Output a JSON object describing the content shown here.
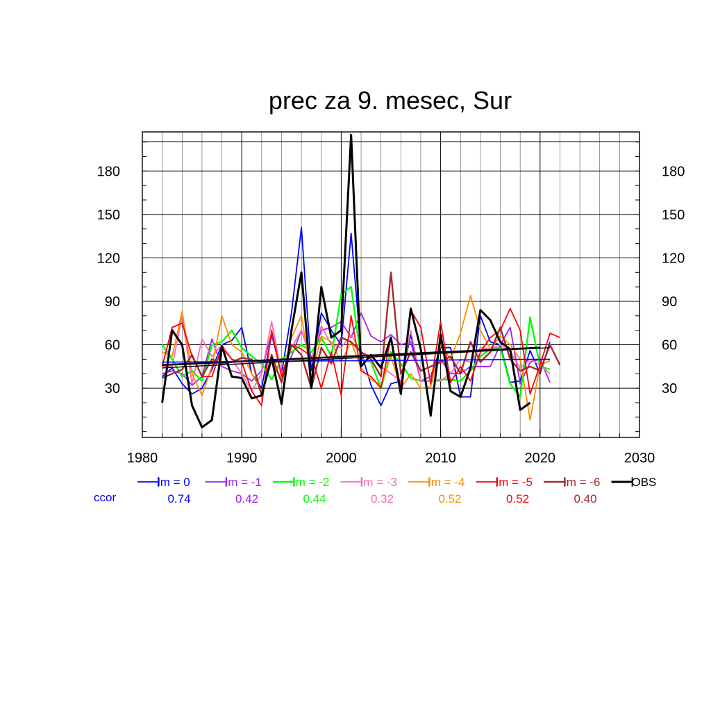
{
  "chart_data": {
    "type": "line",
    "title": "prec za 9. mesec, Sur",
    "xlabel": "",
    "ylabel": "",
    "xlim": [
      1980,
      2030
    ],
    "ylim": [
      -4,
      207
    ],
    "x_ticks": [
      1980,
      1990,
      2000,
      2010,
      2020,
      2030
    ],
    "y_ticks": [
      30,
      60,
      90,
      120,
      150,
      180
    ],
    "grid": true,
    "legend_placement": "below",
    "ccor_label": "ccor",
    "series": [
      {
        "name": "lm = 0",
        "color": "#0000ff",
        "width": 1.8,
        "ccor": "0.74",
        "x": [
          1982,
          1983,
          1984,
          1985,
          1986,
          1987,
          1988,
          1989,
          1990,
          1991,
          1992,
          1993,
          1994,
          1995,
          1996,
          1997,
          1998,
          1999,
          2000,
          2001,
          2002,
          2003,
          2004,
          2005,
          2006,
          2007,
          2008,
          2009,
          2010,
          2011,
          2012,
          2013,
          2014,
          2015,
          2016,
          2017,
          2018,
          2019,
          2020,
          2021
        ],
        "y": [
          38,
          44,
          33,
          26,
          30,
          43,
          60,
          63,
          72,
          40,
          30,
          67,
          40,
          82,
          141,
          42,
          82,
          70,
          60,
          137,
          55,
          32,
          18,
          33,
          35,
          67,
          35,
          38,
          58,
          58,
          24,
          24,
          80,
          62,
          60,
          34,
          35,
          56,
          40,
          62
        ]
      },
      {
        "name": "lm = -1",
        "color": "#a020f0",
        "width": 1.8,
        "ccor": "0.42",
        "x": [
          1982,
          1983,
          1984,
          1985,
          1986,
          1987,
          1988,
          1989,
          1990,
          1991,
          1992,
          1993,
          1994,
          1995,
          1996,
          1997,
          1998,
          1999,
          2000,
          2001,
          2002,
          2003,
          2004,
          2005,
          2006,
          2007,
          2008,
          2009,
          2010,
          2011,
          2012,
          2013,
          2014,
          2015,
          2016,
          2017,
          2018,
          2019,
          2020,
          2021
        ],
        "y": [
          40,
          42,
          40,
          32,
          38,
          64,
          45,
          42,
          40,
          35,
          42,
          68,
          40,
          52,
          70,
          50,
          70,
          72,
          76,
          65,
          82,
          66,
          62,
          67,
          60,
          62,
          35,
          38,
          50,
          40,
          40,
          45,
          45,
          45,
          60,
          72,
          33,
          48,
          50,
          34
        ]
      },
      {
        "name": "lm = -2",
        "color": "#00ff00",
        "width": 2.4,
        "ccor": "0.44",
        "x": [
          1982,
          1983,
          1984,
          1985,
          1986,
          1987,
          1988,
          1989,
          1990,
          1991,
          1992,
          1993,
          1994,
          1995,
          1996,
          1997,
          1998,
          1999,
          2000,
          2001,
          2002,
          2003,
          2004,
          2005,
          2006,
          2007,
          2008,
          2009,
          2010,
          2011,
          2012,
          2013,
          2014,
          2015,
          2016,
          2017,
          2018,
          2019,
          2020,
          2021
        ],
        "y": [
          60,
          50,
          38,
          42,
          35,
          60,
          62,
          70,
          58,
          52,
          47,
          36,
          50,
          55,
          60,
          55,
          65,
          52,
          95,
          100,
          50,
          48,
          30,
          55,
          47,
          37,
          35,
          35,
          36,
          36,
          35,
          42,
          52,
          57,
          58,
          33,
          24,
          79,
          45,
          43
        ]
      },
      {
        "name": "lm = -3",
        "color": "#ff69b4",
        "width": 1.8,
        "ccor": "0.32",
        "x": [
          1982,
          1983,
          1984,
          1985,
          1986,
          1987,
          1988,
          1989,
          1990,
          1991,
          1992,
          1993,
          1994,
          1995,
          1996,
          1997,
          1998,
          1999,
          2000,
          2001,
          2002,
          2003,
          2004,
          2005,
          2006,
          2007,
          2008,
          2009,
          2010,
          2011,
          2012,
          2013,
          2014,
          2015,
          2016,
          2017,
          2018,
          2019,
          2020,
          2021
        ],
        "y": [
          45,
          45,
          80,
          33,
          64,
          52,
          60,
          50,
          40,
          28,
          40,
          76,
          40,
          58,
          70,
          50,
          73,
          60,
          58,
          67,
          55,
          52,
          45,
          40,
          35,
          70,
          35,
          35,
          35,
          40,
          50,
          48,
          58,
          57,
          60,
          55,
          44,
          50,
          46,
          40
        ]
      },
      {
        "name": "lm = -4",
        "color": "#ff8c00",
        "width": 1.8,
        "ccor": "0.52",
        "x": [
          1982,
          1983,
          1984,
          1985,
          1986,
          1987,
          1988,
          1989,
          1990,
          1991,
          1992,
          1993,
          1994,
          1995,
          1996,
          1997,
          1998,
          1999,
          2000,
          2001,
          2002,
          2003,
          2004,
          2005,
          2006,
          2007,
          2008,
          2009,
          2010,
          2011,
          2012,
          2013,
          2014,
          2015,
          2016,
          2017,
          2018,
          2019,
          2020,
          2021
        ],
        "y": [
          55,
          52,
          83,
          40,
          25,
          45,
          80,
          60,
          55,
          40,
          28,
          48,
          36,
          65,
          80,
          38,
          66,
          62,
          48,
          62,
          44,
          36,
          32,
          52,
          30,
          40,
          30,
          31,
          60,
          50,
          68,
          94,
          70,
          57,
          66,
          60,
          50,
          8,
          46,
          49
        ]
      },
      {
        "name": "lm = -5",
        "color": "#ff0000",
        "width": 1.8,
        "ccor": "0.52",
        "x": [
          1982,
          1983,
          1984,
          1985,
          1986,
          1987,
          1988,
          1989,
          1990,
          1991,
          1992,
          1993,
          1994,
          1995,
          1996,
          1997,
          1998,
          1999,
          2000,
          2001,
          2002,
          2003,
          2004,
          2005,
          2006,
          2007,
          2008,
          2009,
          2010,
          2011,
          2012,
          2013,
          2014,
          2015,
          2016,
          2017,
          2018,
          2019,
          2020,
          2021,
          2022
        ],
        "y": [
          45,
          72,
          75,
          52,
          38,
          38,
          58,
          50,
          48,
          28,
          18,
          70,
          38,
          60,
          57,
          52,
          30,
          55,
          25,
          80,
          42,
          38,
          30,
          65,
          30,
          84,
          72,
          33,
          76,
          34,
          45,
          35,
          55,
          65,
          70,
          85,
          70,
          26,
          46,
          68,
          65
        ]
      },
      {
        "name": "lm = -6",
        "color": "#a52a2a",
        "width": 2.4,
        "ccor": "0.40",
        "x": [
          1982,
          1983,
          1984,
          1985,
          1986,
          1987,
          1988,
          1989,
          1990,
          1991,
          1992,
          1993,
          1994,
          1995,
          1996,
          1997,
          1998,
          1999,
          2000,
          2001,
          2002,
          2003,
          2004,
          2005,
          2006,
          2007,
          2008,
          2009,
          2010,
          2011,
          2012,
          2013,
          2014,
          2015,
          2016,
          2017,
          2018,
          2019,
          2020,
          2021,
          2022
        ],
        "y": [
          37,
          40,
          43,
          53,
          38,
          50,
          47,
          48,
          51,
          50,
          25,
          53,
          34,
          60,
          53,
          30,
          58,
          47,
          65,
          62,
          55,
          50,
          38,
          110,
          40,
          55,
          42,
          45,
          48,
          52,
          40,
          62,
          48,
          55,
          72,
          50,
          42,
          45,
          42,
          60,
          46
        ]
      },
      {
        "name": "OBS",
        "color": "#000000",
        "width": 3.0,
        "ccor": "",
        "x": [
          1982,
          1983,
          1984,
          1985,
          1986,
          1987,
          1988,
          1989,
          1990,
          1991,
          1992,
          1993,
          1994,
          1995,
          1996,
          1997,
          1998,
          1999,
          2000,
          2001,
          2002,
          2003,
          2004,
          2005,
          2006,
          2007,
          2008,
          2009,
          2010,
          2011,
          2012,
          2013,
          2014,
          2015,
          2016,
          2017,
          2018,
          2019
        ],
        "y": [
          20,
          70,
          60,
          18,
          3,
          8,
          59,
          38,
          37,
          23,
          25,
          51,
          19,
          70,
          110,
          30,
          100,
          65,
          70,
          205,
          45,
          53,
          44,
          65,
          26,
          85,
          57,
          11,
          67,
          28,
          24,
          44,
          84,
          77,
          62,
          57,
          15,
          20
        ]
      }
    ],
    "trend_lines": [
      {
        "name": "OBS-trend",
        "color": "#000000",
        "width": 2.6,
        "x": [
          1982,
          2020
        ],
        "y": [
          46,
          58
        ]
      },
      {
        "name": "model-trend",
        "color": "#0000ff",
        "width": 1.6,
        "x": [
          1982,
          2021
        ],
        "y": [
          48,
          50
        ]
      },
      {
        "name": "model-trend-2",
        "color": "#000000",
        "width": 1.4,
        "x": [
          1982,
          2021
        ],
        "y": [
          44,
          58
        ]
      }
    ]
  }
}
